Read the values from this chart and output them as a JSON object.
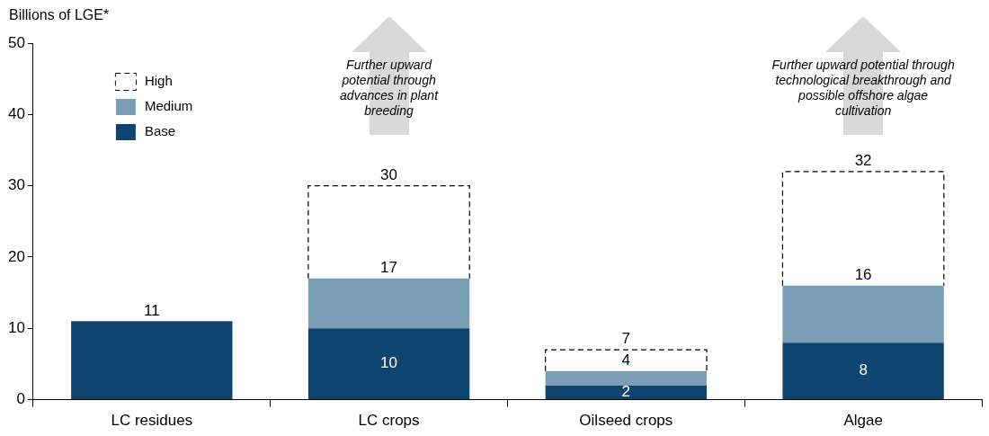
{
  "chart_data": {
    "type": "bar",
    "stacked": true,
    "ylabel": "Billions of LGE*",
    "categories": [
      "LC residues",
      "LC crops",
      "Oilseed crops",
      "Algae"
    ],
    "series": [
      {
        "name": "Base",
        "color": "#0e4470",
        "values": [
          11,
          10,
          2,
          8
        ],
        "value_labels": [
          null,
          "10",
          "2",
          "8"
        ]
      },
      {
        "name": "Medium",
        "color": "#7a9fb5",
        "values": [
          null,
          7,
          2,
          8
        ]
      },
      {
        "name": "High",
        "color": "#ffffff",
        "line_style": "dashed",
        "values": [
          null,
          13,
          3,
          16
        ]
      }
    ],
    "totals": [
      "11",
      "30",
      "7",
      "32"
    ],
    "ylim": [
      0,
      50
    ],
    "yticks": [
      0,
      10,
      20,
      30,
      40,
      50
    ],
    "legend": "top left",
    "annotations": [
      "Further upward potential through advances in plant breeding",
      "Further upward potential through technological breakthrough and possible offshore algae cultivation",
      {
        "text": "17",
        "x": "LC crops",
        "y": 17
      },
      {
        "text": "4",
        "x": "Oilseed crops",
        "y": 4
      },
      {
        "text": "16",
        "x": "Algae",
        "y": 16
      }
    ]
  }
}
